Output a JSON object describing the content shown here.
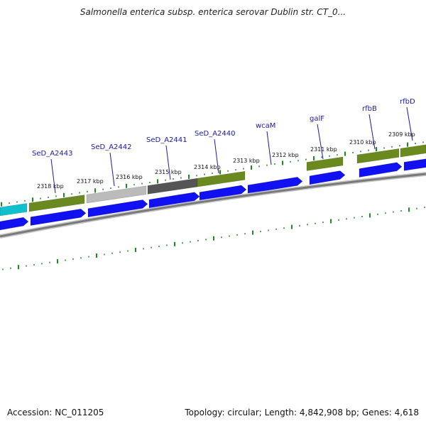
{
  "title": "Salmonella enterica subsp. enterica serovar Dublin str. CT_0...",
  "footer": {
    "accession": "Accession: NC_011205",
    "summary": "Topology: circular; Length: 4,842,908 bp; Genes: 4,618"
  },
  "colors": {
    "cds": "#1010f0",
    "gene_olive": "#6a8a20",
    "gene_dark": "#555555",
    "gene_light": "#bbbbbb",
    "gene_cyan": "#10c0cc",
    "backbone": "#808080",
    "tick": "#228822",
    "label": "#1a1aa6"
  },
  "kbp_labels": [
    "2318 kbp",
    "2317 kbp",
    "2316 kbp",
    "2315 kbp",
    "2314 kbp",
    "2313 kbp",
    "2312 kbp",
    "2311 kbp",
    "2310 kbp",
    "2309 kbp"
  ],
  "gene_labels": [
    "SeD_A2443",
    "SeD_A2442",
    "SeD_A2441",
    "SeD_A2440",
    "wcaM",
    "galF",
    "rfbB",
    "rfbD"
  ]
}
